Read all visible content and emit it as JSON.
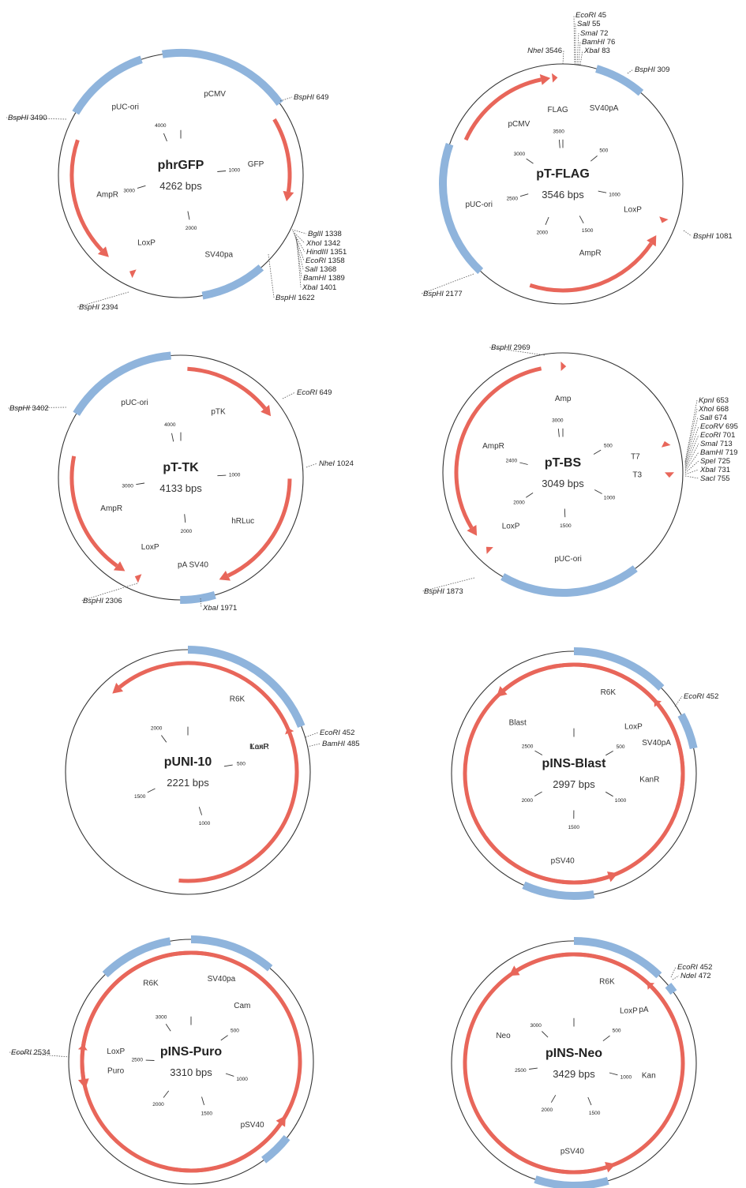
{
  "colors": {
    "gene": "#e8665a",
    "region": "#8fb4dc"
  },
  "maps": [
    {
      "name": "phrGFP",
      "size_label": "4262 bps",
      "total": 4262,
      "regions": [
        {
          "label": "pUC-ori",
          "start": 3560,
          "end": 4040
        },
        {
          "label": "pCMV",
          "start": 4160,
          "end": 640
        },
        {
          "label": "SV40pa",
          "start": 1645,
          "end": 2010
        }
      ],
      "genes": [
        {
          "label": "GFP",
          "start": 700,
          "end": 1230,
          "dir": 1
        },
        {
          "label": "AmpR",
          "start": 2620,
          "end": 3420,
          "dir": -1
        },
        {
          "label": "LoxP",
          "start": 2430,
          "end": 2470,
          "dir": 1
        }
      ],
      "ticks": [
        {
          "label": "1000",
          "pos": 1000
        },
        {
          "label": "2000",
          "pos": 2000
        },
        {
          "label": "3000",
          "pos": 3000
        },
        {
          "label": "4000",
          "pos": 4000
        }
      ],
      "sites": [
        {
          "enzyme": "BspHI",
          "pos": "649"
        },
        {
          "enzyme": "BglII",
          "pos": "1338"
        },
        {
          "enzyme": "XhoI",
          "pos": "1342"
        },
        {
          "enzyme": "HindIII",
          "pos": "1351"
        },
        {
          "enzyme": "EcoRI",
          "pos": "1358"
        },
        {
          "enzyme": "SalI",
          "pos": "1368"
        },
        {
          "enzyme": "BamHI",
          "pos": "1389"
        },
        {
          "enzyme": "XbaI",
          "pos": "1401"
        },
        {
          "enzyme": "BspHI",
          "pos": "1622"
        },
        {
          "enzyme": "BspHI",
          "pos": "2394"
        },
        {
          "enzyme": "BspHI",
          "pos": "3490"
        }
      ]
    },
    {
      "name": "pT-FLAG",
      "size_label": "3546 bps",
      "total": 3546,
      "regions": [
        {
          "label": "SV40pA",
          "start": 160,
          "end": 400
        },
        {
          "label": "pUC-ori",
          "start": 2200,
          "end": 2850
        }
      ],
      "genes": [
        {
          "label": "pCMV",
          "start": 2900,
          "end": 3480,
          "dir": 1
        },
        {
          "label": "FLAG",
          "start": 3490,
          "end": 3525,
          "dir": 1
        },
        {
          "label": "AmpR",
          "start": 1170,
          "end": 1950,
          "dir": -1
        },
        {
          "label": "LoxP",
          "start": 1070,
          "end": 1100,
          "dir": 1
        }
      ],
      "ticks": [
        {
          "label": "500",
          "pos": 500
        },
        {
          "label": "1000",
          "pos": 1000
        },
        {
          "label": "1500",
          "pos": 1500
        },
        {
          "label": "2000",
          "pos": 2000
        },
        {
          "label": "2500",
          "pos": 2500
        },
        {
          "label": "3000",
          "pos": 3000
        },
        {
          "label": "3500",
          "pos": 3500
        }
      ],
      "sites": [
        {
          "enzyme": "EcoRI",
          "pos": "45"
        },
        {
          "enzyme": "SalI",
          "pos": "55"
        },
        {
          "enzyme": "SmaI",
          "pos": "72"
        },
        {
          "enzyme": "BamHI",
          "pos": "76"
        },
        {
          "enzyme": "XbaI",
          "pos": "83"
        },
        {
          "enzyme": "NheI",
          "pos": "3546"
        },
        {
          "enzyme": "BspHI",
          "pos": "309"
        },
        {
          "enzyme": "BspHI",
          "pos": "1081"
        },
        {
          "enzyme": "BspHI",
          "pos": "2177"
        }
      ]
    },
    {
      "name": "pT-TK",
      "size_label": "4133 bps",
      "total": 4133,
      "regions": [
        {
          "label": "pUC-ori",
          "start": 3460,
          "end": 4080
        },
        {
          "label": "pA SV40",
          "start": 1880,
          "end": 2070
        }
      ],
      "genes": [
        {
          "label": "pTK",
          "start": 40,
          "end": 640,
          "dir": 1
        },
        {
          "label": "hRLuc",
          "start": 1040,
          "end": 1830,
          "dir": 1
        },
        {
          "label": "AmpR",
          "start": 2420,
          "end": 3230,
          "dir": -1
        },
        {
          "label": "LoxP",
          "start": 2320,
          "end": 2360,
          "dir": 1
        }
      ],
      "ticks": [
        {
          "label": "1000",
          "pos": 1000
        },
        {
          "label": "2000",
          "pos": 2000
        },
        {
          "label": "3000",
          "pos": 3000
        },
        {
          "label": "4000",
          "pos": 4000
        }
      ],
      "sites": [
        {
          "enzyme": "EcoRI",
          "pos": "649"
        },
        {
          "enzyme": "NheI",
          "pos": "1024"
        },
        {
          "enzyme": "XbaI",
          "pos": "1971"
        },
        {
          "enzyme": "BspHI",
          "pos": "2306"
        },
        {
          "enzyme": "BspHI",
          "pos": "3402"
        }
      ]
    },
    {
      "name": "pT-BS",
      "size_label": "3049 bps",
      "total": 3049,
      "regions": [
        {
          "label": "pUC-ori",
          "start": 1210,
          "end": 1780
        }
      ],
      "genes": [
        {
          "label": "Amp",
          "start": 3040,
          "end": 3060,
          "dir": 1
        },
        {
          "label": "AmpR",
          "start": 1980,
          "end": 2950,
          "dir": -1
        },
        {
          "label": "LoxP",
          "start": 1890,
          "end": 1910,
          "dir": 1
        },
        {
          "label": "T7",
          "start": 640,
          "end": 670,
          "dir": -1
        },
        {
          "label": "T3",
          "start": 760,
          "end": 790,
          "dir": 1
        }
      ],
      "ticks": [
        {
          "label": "500",
          "pos": 500
        },
        {
          "label": "1000",
          "pos": 1000
        },
        {
          "label": "1500",
          "pos": 1500
        },
        {
          "label": "2000",
          "pos": 2000
        },
        {
          "label": "2400",
          "pos": 2400
        },
        {
          "label": "3000",
          "pos": 3000
        }
      ],
      "sites": [
        {
          "enzyme": "KpnI",
          "pos": "653"
        },
        {
          "enzyme": "XhoI",
          "pos": "668"
        },
        {
          "enzyme": "SalI",
          "pos": "674"
        },
        {
          "enzyme": "EcoRV",
          "pos": "695"
        },
        {
          "enzyme": "EcoRI",
          "pos": "701"
        },
        {
          "enzyme": "SmaI",
          "pos": "713"
        },
        {
          "enzyme": "BamHI",
          "pos": "719"
        },
        {
          "enzyme": "SpeI",
          "pos": "725"
        },
        {
          "enzyme": "XbaI",
          "pos": "731"
        },
        {
          "enzyme": "SacI",
          "pos": "755"
        },
        {
          "enzyme": "BspHI",
          "pos": "2969"
        },
        {
          "enzyme": "BspHI",
          "pos": "1873"
        }
      ]
    },
    {
      "name": "pUNI-10",
      "size_label": "2221 bps",
      "total": 2221,
      "regions": [
        {
          "label": "R6K",
          "start": 0,
          "end": 420
        }
      ],
      "genes": [
        {
          "label": "LoxP",
          "start": 425,
          "end": 445,
          "dir": -1
        },
        {
          "label": "KanR",
          "start": 1950,
          "end": 1140,
          "dir": -1
        }
      ],
      "ticks": [
        {
          "label": "500",
          "pos": 500
        },
        {
          "label": "1000",
          "pos": 1000
        },
        {
          "label": "1500",
          "pos": 1500
        },
        {
          "label": "2000",
          "pos": 2000
        }
      ],
      "sites": [
        {
          "enzyme": "EcoRI",
          "pos": "452"
        },
        {
          "enzyme": "BamHI",
          "pos": "485"
        }
      ]
    },
    {
      "name": "pINS-Blast",
      "size_label": "2997 bps",
      "total": 2997,
      "regions": [
        {
          "label": "R6K",
          "start": 0,
          "end": 380
        },
        {
          "label": "SV40pA",
          "start": 510,
          "end": 650
        },
        {
          "label": "pSV40",
          "start": 1420,
          "end": 1700
        }
      ],
      "genes": [
        {
          "label": "LoxP",
          "start": 420,
          "end": 440,
          "dir": -1
        },
        {
          "label": "Blast",
          "start": 1300,
          "end": 900,
          "dir": -1
        },
        {
          "label": "KanR",
          "start": 2620,
          "end": 1950,
          "dir": -1
        }
      ],
      "ticks": [
        {
          "label": "500",
          "pos": 500
        },
        {
          "label": "1000",
          "pos": 1000
        },
        {
          "label": "1500",
          "pos": 1500
        },
        {
          "label": "2000",
          "pos": 2000
        },
        {
          "label": "2500",
          "pos": 2500
        }
      ],
      "sites": [
        {
          "enzyme": "EcoRI",
          "pos": "452"
        }
      ]
    },
    {
      "name": "pINS-Puro",
      "size_label": "3310 bps",
      "total": 3310,
      "regions": [
        {
          "label": "SV40pa",
          "start": 0,
          "end": 370
        },
        {
          "label": "pSV40",
          "start": 1180,
          "end": 1320
        },
        {
          "label": "R6K",
          "start": 2900,
          "end": 3220
        }
      ],
      "genes": [
        {
          "label": "Puro",
          "start": 1100,
          "end": 430,
          "dir": -1
        },
        {
          "label": "LoxP",
          "start": 2540,
          "end": 2570,
          "dir": 1
        },
        {
          "label": "Cam",
          "start": 2350,
          "end": 1740,
          "dir": -1
        }
      ],
      "ticks": [
        {
          "label": "500",
          "pos": 500
        },
        {
          "label": "1000",
          "pos": 1000
        },
        {
          "label": "1500",
          "pos": 1500
        },
        {
          "label": "2000",
          "pos": 2000
        },
        {
          "label": "2500",
          "pos": 2500
        },
        {
          "label": "3000",
          "pos": 3000
        }
      ],
      "sites": [
        {
          "enzyme": "EcoRI",
          "pos": "2534"
        }
      ]
    },
    {
      "name": "pINS-Neo",
      "size_label": "3429 bps",
      "total": 3429,
      "regions": [
        {
          "label": "R6K",
          "start": 0,
          "end": 420
        },
        {
          "label": "pA",
          "start": 480,
          "end": 520
        },
        {
          "label": "pSV40",
          "start": 1560,
          "end": 1890
        }
      ],
      "genes": [
        {
          "label": "LoxP",
          "start": 430,
          "end": 450,
          "dir": -1
        },
        {
          "label": "Neo",
          "start": 1500,
          "end": 620,
          "dir": -1
        },
        {
          "label": "Kan",
          "start": 3080,
          "end": 2240,
          "dir": -1
        }
      ],
      "ticks": [
        {
          "label": "500",
          "pos": 500
        },
        {
          "label": "1000",
          "pos": 1000
        },
        {
          "label": "1500",
          "pos": 1500
        },
        {
          "label": "2000",
          "pos": 2000
        },
        {
          "label": "2500",
          "pos": 2500
        },
        {
          "label": "3000",
          "pos": 3000
        }
      ],
      "sites": [
        {
          "enzyme": "EcoRI",
          "pos": "452"
        },
        {
          "enzyme": "NdeI",
          "pos": "472"
        }
      ]
    }
  ]
}
